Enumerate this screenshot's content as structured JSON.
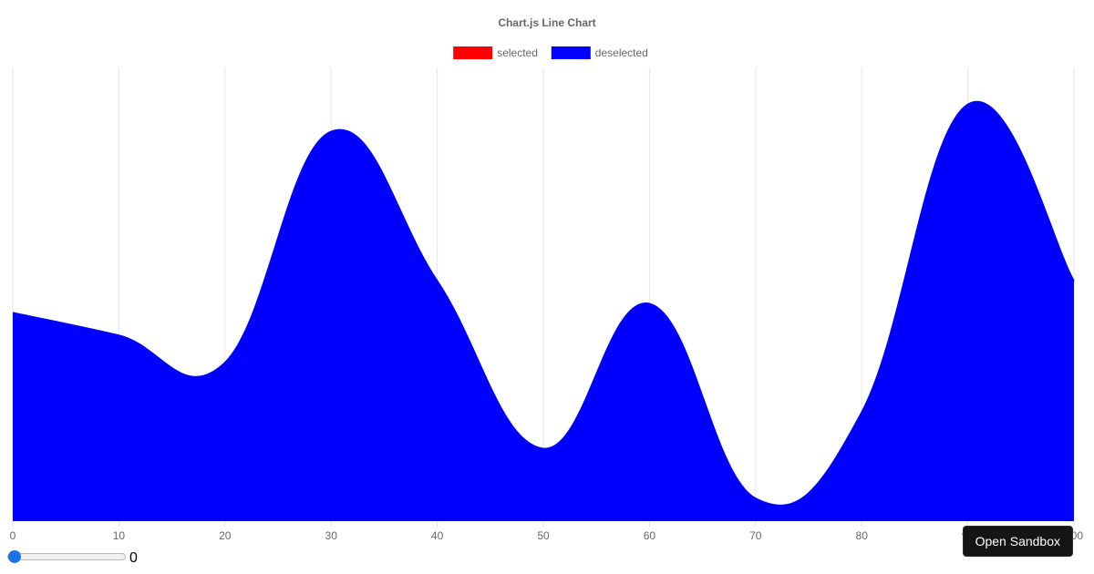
{
  "chart_data": {
    "type": "area",
    "title": "Chart.js Line Chart",
    "legend": {
      "position": "top",
      "items": [
        {
          "label": "selected",
          "color": "#ff0000"
        },
        {
          "label": "deselected",
          "color": "#0000ff"
        }
      ]
    },
    "x": [
      0,
      10,
      20,
      30,
      40,
      50,
      60,
      70,
      80,
      90,
      100
    ],
    "x_tick_labels": [
      "0",
      "10",
      "20",
      "30",
      "40",
      "50",
      "60",
      "70",
      "80",
      "90",
      "100"
    ],
    "series": [
      {
        "name": "deselected",
        "color": "#0000ff",
        "fill": true,
        "values": [
          46,
          41,
          35,
          86,
          53,
          16,
          48,
          5,
          24,
          92,
          53
        ]
      }
    ],
    "xlim": [
      0,
      100
    ],
    "ylim": [
      0,
      100
    ],
    "y_axis_visible": false,
    "grid": {
      "vertical": true,
      "horizontal": false
    }
  },
  "controls": {
    "slider_value": 0,
    "slider_value_label": "0",
    "slider_color": "#1a73e8",
    "open_sandbox_label": "Open Sandbox"
  }
}
